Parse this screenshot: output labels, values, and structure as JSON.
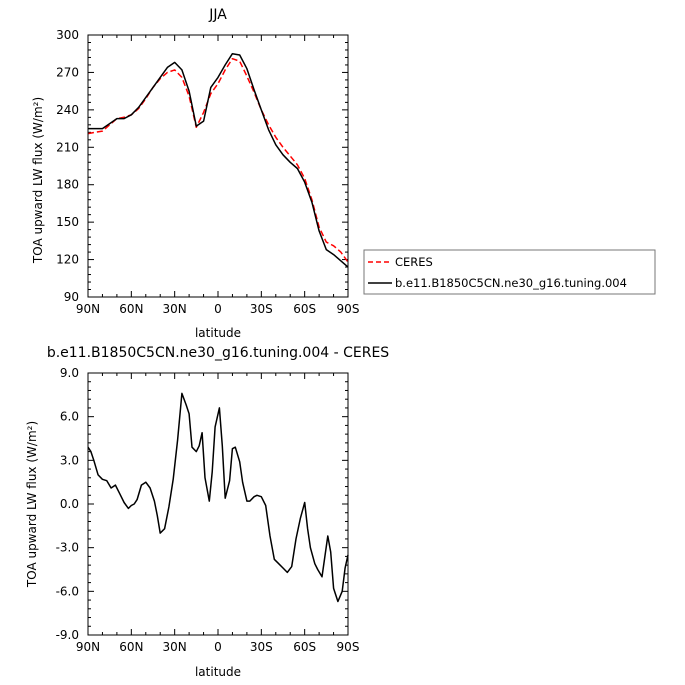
{
  "chart_data": [
    {
      "type": "line",
      "title": "JJA",
      "xlabel": "latitude",
      "ylabel": "TOA upward LW flux (W/m²)",
      "xlim": [
        90,
        -90
      ],
      "ylim": [
        90,
        300
      ],
      "x_ticks": [
        90,
        60,
        30,
        0,
        -30,
        -60,
        -90
      ],
      "x_tick_labels": [
        "90N",
        "60N",
        "30N",
        "0",
        "30S",
        "60S",
        "90S"
      ],
      "y_ticks": [
        90,
        120,
        150,
        180,
        210,
        240,
        270,
        300
      ],
      "y_tick_labels": [
        "90",
        "120",
        "150",
        "180",
        "210",
        "240",
        "270",
        "300"
      ],
      "legend_placement": "right",
      "series": [
        {
          "name": "CERES",
          "color": "#ff0000",
          "dash": "dashed",
          "x": [
            90,
            85,
            80,
            75,
            70,
            65,
            60,
            55,
            50,
            45,
            40,
            35,
            30,
            25,
            20,
            15,
            10,
            5,
            0,
            -5,
            -10,
            -15,
            -20,
            -25,
            -30,
            -35,
            -40,
            -45,
            -50,
            -55,
            -60,
            -65,
            -70,
            -75,
            -80,
            -85,
            -90
          ],
          "y": [
            221,
            222,
            223,
            228,
            233,
            234,
            236,
            241,
            249,
            258,
            265,
            270,
            272,
            266,
            251,
            226,
            238,
            253,
            261,
            272,
            281,
            279,
            267,
            254,
            240,
            228,
            218,
            210,
            203,
            196,
            185,
            168,
            146,
            134,
            131,
            126,
            118
          ]
        },
        {
          "name": "b.e11.B1850C5CN.ne30_g16.tuning.004",
          "color": "#000000",
          "dash": "solid",
          "x": [
            90,
            85,
            80,
            75,
            70,
            65,
            60,
            55,
            50,
            45,
            40,
            35,
            30,
            25,
            20,
            15,
            10,
            5,
            0,
            -5,
            -10,
            -15,
            -20,
            -25,
            -30,
            -35,
            -40,
            -45,
            -50,
            -55,
            -60,
            -65,
            -70,
            -75,
            -80,
            -85,
            -90
          ],
          "y": [
            225,
            225,
            225,
            229,
            233,
            233,
            236,
            242,
            250,
            258,
            266,
            274,
            278,
            272,
            255,
            227,
            231,
            258,
            266,
            276,
            285,
            284,
            273,
            256,
            240,
            224,
            212,
            204,
            198,
            193,
            182,
            166,
            143,
            128,
            124,
            119,
            114
          ]
        }
      ]
    },
    {
      "type": "line",
      "title": "b.e11.B1850C5CN.ne30_g16.tuning.004 - CERES",
      "xlabel": "latitude",
      "ylabel": "TOA upward LW flux (W/m²)",
      "xlim": [
        90,
        -90
      ],
      "ylim": [
        -9,
        9
      ],
      "x_ticks": [
        90,
        60,
        30,
        0,
        -30,
        -60,
        -90
      ],
      "x_tick_labels": [
        "90N",
        "60N",
        "30N",
        "0",
        "30S",
        "60S",
        "90S"
      ],
      "y_ticks": [
        -9,
        -6,
        -3,
        0,
        3,
        6,
        9
      ],
      "y_tick_labels": [
        "-9.0",
        "-6.0",
        "-3.0",
        "0.0",
        "3.0",
        "6.0",
        "9.0"
      ],
      "series": [
        {
          "color": "#000000",
          "dash": "solid",
          "x": [
            90,
            88,
            86,
            83,
            80,
            77,
            74,
            71,
            68,
            65,
            62,
            60,
            58,
            56,
            53,
            50,
            47,
            44,
            42,
            40,
            37,
            34,
            31,
            28,
            25,
            22,
            20,
            18,
            15,
            13,
            11,
            9,
            6,
            4,
            2,
            -1,
            -3,
            -5,
            -8,
            -10,
            -12,
            -15,
            -17,
            -20,
            -22,
            -25,
            -27,
            -30,
            -33,
            -36,
            -39,
            -42,
            -45,
            -48,
            -51,
            -54,
            -57,
            -60,
            -62,
            -64,
            -67,
            -69,
            -72,
            -74,
            -76,
            -78,
            -80,
            -83,
            -86,
            -88,
            -90
          ],
          "y": [
            3.9,
            3.6,
            3.0,
            2.0,
            1.7,
            1.6,
            1.1,
            1.3,
            0.7,
            0.1,
            -0.3,
            -0.1,
            0.0,
            0.3,
            1.3,
            1.5,
            1.1,
            0.2,
            -0.8,
            -2.0,
            -1.7,
            -0.2,
            1.7,
            4.4,
            7.6,
            6.8,
            6.2,
            3.9,
            3.6,
            4.0,
            4.9,
            1.8,
            0.2,
            2.2,
            5.3,
            6.6,
            4.0,
            0.4,
            1.6,
            3.8,
            3.9,
            2.9,
            1.5,
            0.2,
            0.2,
            0.5,
            0.6,
            0.5,
            -0.1,
            -2.2,
            -3.8,
            -4.1,
            -4.4,
            -4.7,
            -4.3,
            -2.4,
            -1.0,
            0.1,
            -1.7,
            -3.0,
            -4.1,
            -4.5,
            -5.0,
            -3.6,
            -2.2,
            -3.3,
            -5.8,
            -6.7,
            -6.0,
            -4.4,
            -3.5
          ]
        }
      ]
    }
  ]
}
